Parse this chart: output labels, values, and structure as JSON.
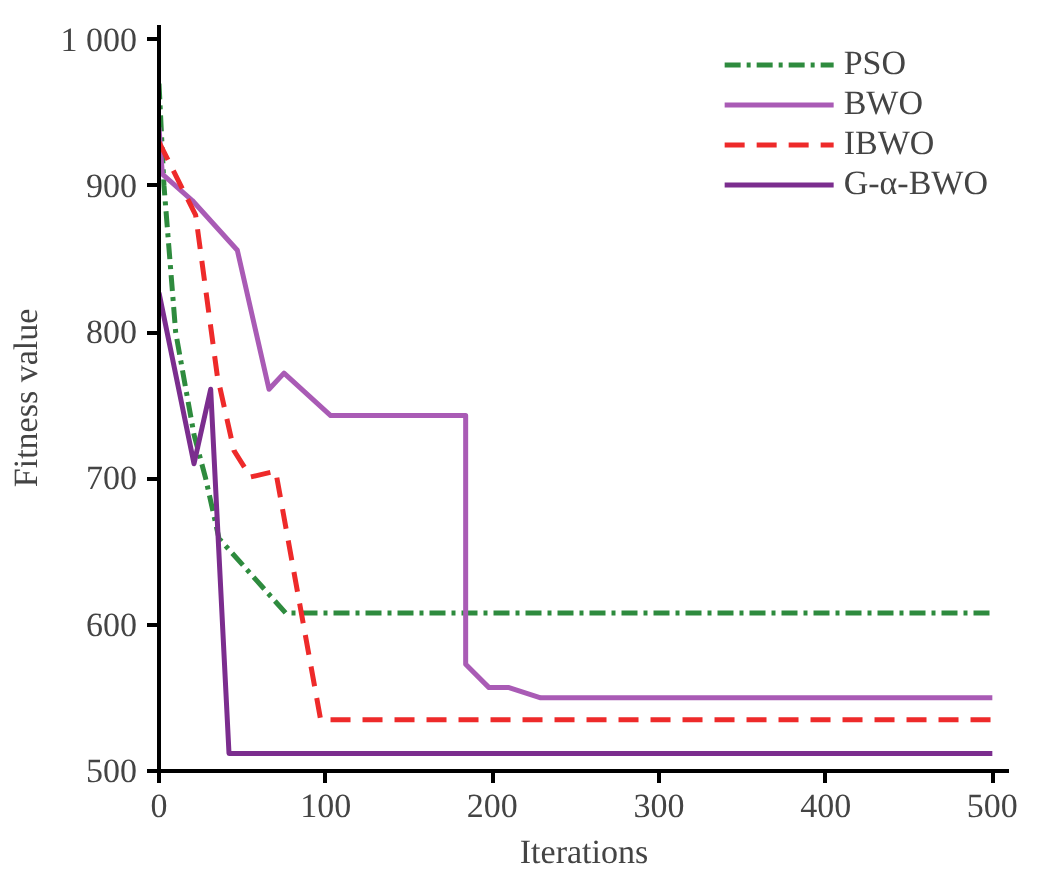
{
  "chart_data": {
    "type": "line",
    "xlabel": "Iterations",
    "ylabel": "Fitness value",
    "xlim": [
      0,
      510
    ],
    "ylim": [
      500,
      1010
    ],
    "xticks": [
      0,
      100,
      200,
      300,
      400,
      500
    ],
    "yticks": [
      500,
      600,
      700,
      800,
      900,
      {
        "value": 1000,
        "label": "1 000"
      }
    ],
    "grid": false,
    "legend": "top right",
    "series": [
      {
        "name": "PSO",
        "color": "#2e8b3e",
        "line_style": "dashdot",
        "x": [
          0,
          3,
          10,
          21,
          28,
          36,
          76,
          500
        ],
        "values": [
          970,
          900,
          800,
          730,
          700,
          659,
          608,
          608
        ]
      },
      {
        "name": "BWO",
        "color": "#a95bb5",
        "line_style": "solid",
        "x": [
          0,
          2,
          20,
          47,
          66,
          75,
          103,
          184,
          184,
          198,
          210,
          229,
          500
        ],
        "values": [
          940,
          908,
          890,
          856,
          761,
          772,
          743,
          743,
          573,
          557,
          557,
          550,
          550
        ]
      },
      {
        "name": "IBWO",
        "color": "#ee2a2a",
        "line_style": "dashed",
        "x": [
          0,
          22,
          35,
          45,
          55,
          70,
          97,
          500
        ],
        "values": [
          930,
          880,
          770,
          719,
          701,
          705,
          535,
          535
        ]
      },
      {
        "name": "G-α-BWO",
        "color": "#7b2d8e",
        "line_style": "solid",
        "x": [
          0,
          21,
          31,
          42,
          500
        ],
        "values": [
          827,
          710,
          761,
          512,
          512
        ]
      }
    ]
  }
}
